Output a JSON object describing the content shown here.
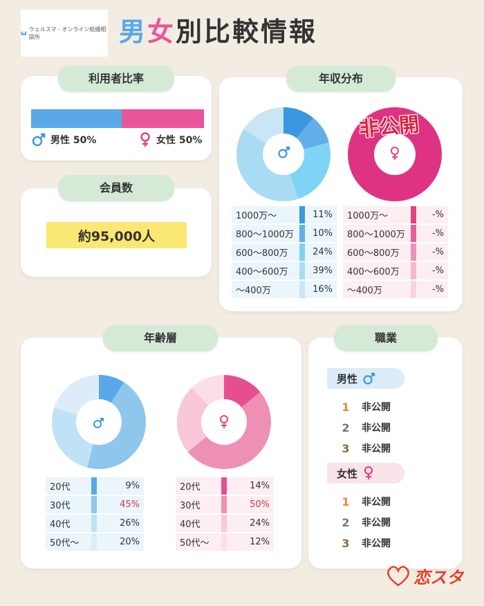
{
  "logo": {
    "mark": "ω",
    "text": "ウェルスマ - オンライン結婚相談所"
  },
  "title": "男女別比較情報",
  "user_ratio": {
    "heading": "利用者比率",
    "male_label": "男性 50%",
    "female_label": "女性 50%",
    "male_pct": 50,
    "female_pct": 50
  },
  "members": {
    "heading": "会員数",
    "value": "約95,000人"
  },
  "income": {
    "heading": "年収分布",
    "stamp": "非公開",
    "male": [
      {
        "label": "1000万〜",
        "value": "11%",
        "pct": 11,
        "color": "#3a98e0"
      },
      {
        "label": "800〜1000万",
        "value": "10%",
        "pct": 10,
        "color": "#62aeea"
      },
      {
        "label": "600〜800万",
        "value": "24%",
        "pct": 24,
        "color": "#7fd3f5"
      },
      {
        "label": "400〜600万",
        "value": "39%",
        "pct": 39,
        "color": "#a9dcf4"
      },
      {
        "label": "〜400万",
        "value": "16%",
        "pct": 16,
        "color": "#c9e6f7"
      }
    ],
    "female": [
      {
        "label": "1000万〜",
        "value": "-%",
        "color": "#e0457e"
      },
      {
        "label": "800〜1000万",
        "value": "-%",
        "color": "#e8609a"
      },
      {
        "label": "600〜800万",
        "value": "-%",
        "color": "#eb93b6"
      },
      {
        "label": "400〜600万",
        "value": "-%",
        "color": "#f3b8cc"
      },
      {
        "label": "〜400万",
        "value": "-%",
        "color": "#f8d3df"
      }
    ]
  },
  "age": {
    "heading": "年齢層",
    "male": [
      {
        "label": "20代",
        "value": "9%",
        "pct": 9,
        "color": "#5aa8e8",
        "highlight": false
      },
      {
        "label": "30代",
        "value": "45%",
        "pct": 45,
        "color": "#8ec6ec",
        "highlight": true
      },
      {
        "label": "40代",
        "value": "26%",
        "pct": 26,
        "color": "#bfe2f7",
        "highlight": false
      },
      {
        "label": "50代〜",
        "value": "20%",
        "pct": 20,
        "color": "#dcedf9",
        "highlight": false
      }
    ],
    "female": [
      {
        "label": "20代",
        "value": "14%",
        "pct": 14,
        "color": "#e64f8f",
        "highlight": false
      },
      {
        "label": "30代",
        "value": "50%",
        "pct": 50,
        "color": "#ee8fb6",
        "highlight": true
      },
      {
        "label": "40代",
        "value": "24%",
        "pct": 24,
        "color": "#f8c8d8",
        "highlight": false
      },
      {
        "label": "50代〜",
        "value": "12%",
        "pct": 12,
        "color": "#fbdfe8",
        "highlight": false
      }
    ]
  },
  "jobs": {
    "heading": "職業",
    "male_label": "男性",
    "female_label": "女性",
    "male": [
      {
        "rank": "1",
        "name": "非公開"
      },
      {
        "rank": "2",
        "name": "非公開"
      },
      {
        "rank": "3",
        "name": "非公開"
      }
    ],
    "female": [
      {
        "rank": "1",
        "name": "非公開"
      },
      {
        "rank": "2",
        "name": "非公開"
      },
      {
        "rank": "3",
        "name": "非公開"
      }
    ]
  },
  "brand": "恋スタ",
  "colors": {
    "male": "#3a98e0",
    "female": "#e0457e",
    "pill": "#d4ead7",
    "members_bg": "#fbe773",
    "rank1": "#e8883a",
    "rank2": "#777777",
    "rank3": "#8a6a3a"
  }
}
